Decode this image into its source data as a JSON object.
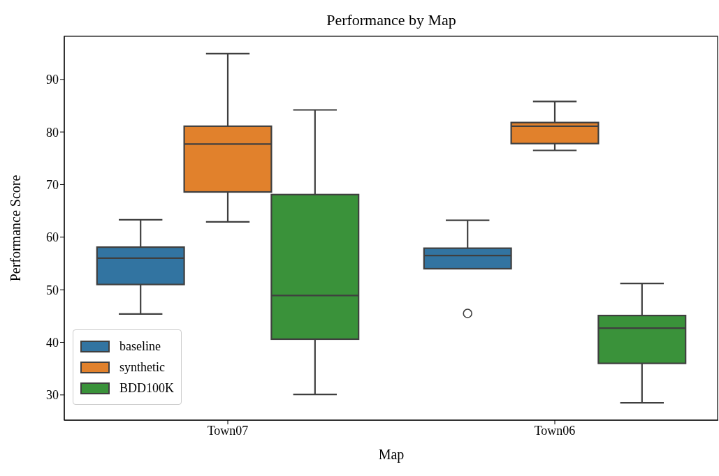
{
  "chart_data": {
    "type": "box",
    "title": "Performance by Map",
    "xlabel": "Map",
    "ylabel": "Performance Score",
    "categories": [
      "Town07",
      "Town06"
    ],
    "ylim": [
      25.2,
      98.2
    ],
    "yticks": [
      30,
      40,
      50,
      60,
      70,
      80,
      90
    ],
    "grid": false,
    "legend": "bottom left",
    "series": [
      {
        "name": "baseline",
        "color": "#3274a1",
        "boxes": [
          {
            "low": 45.4,
            "q1": 51.0,
            "median": 56.0,
            "q3": 58.1,
            "high": 63.3
          },
          {
            "low": 54.0,
            "q1": 54.0,
            "median": 56.5,
            "q3": 57.9,
            "high": 63.2,
            "outliers": [
              45.5
            ]
          }
        ]
      },
      {
        "name": "synthetic",
        "color": "#e1812c",
        "boxes": [
          {
            "low": 62.9,
            "q1": 68.6,
            "median": 77.7,
            "q3": 81.1,
            "high": 94.9
          },
          {
            "low": 76.5,
            "q1": 77.8,
            "median": 81.1,
            "q3": 81.8,
            "high": 85.8
          }
        ]
      },
      {
        "name": "BDD100K",
        "color": "#3a923a",
        "boxes": [
          {
            "low": 30.1,
            "q1": 40.6,
            "median": 48.9,
            "q3": 68.1,
            "high": 84.2
          },
          {
            "low": 28.5,
            "q1": 36.0,
            "median": 42.7,
            "q3": 45.1,
            "high": 51.2
          }
        ]
      }
    ]
  }
}
